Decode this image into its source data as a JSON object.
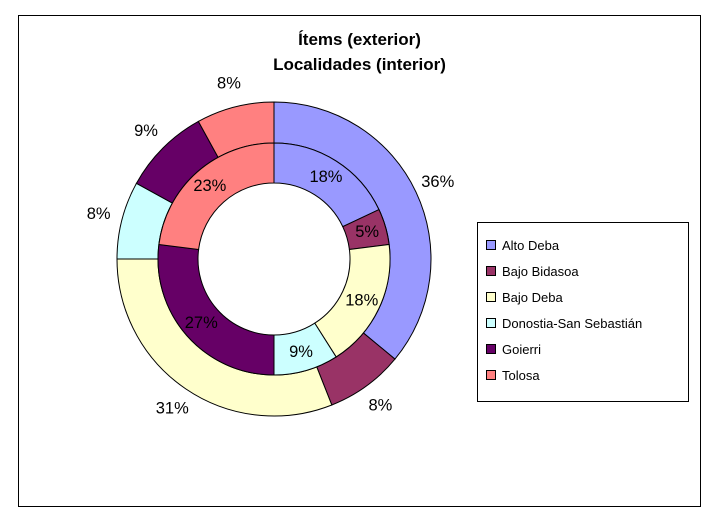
{
  "chart_data": {
    "type": "doughnut",
    "title": [
      "Ítems (exterior)",
      "Localidades (interior)"
    ],
    "legend": {
      "position": "right"
    },
    "categories": [
      "Alto Deba",
      "Bajo Bidasoa",
      "Bajo Deba",
      "Donostia-San Sebastián",
      "Goierri",
      "Tolosa"
    ],
    "colors": [
      "#9999FF",
      "#993366",
      "#FFFFCC",
      "#CCFFFF",
      "#660066",
      "#FF8080"
    ],
    "series": [
      {
        "values": [
          36,
          8,
          31,
          8,
          9,
          8
        ],
        "labels": [
          "36%",
          "8%",
          "31%",
          "8%",
          "9%",
          "8%"
        ]
      },
      {
        "values": [
          18,
          5,
          18,
          9,
          27,
          23
        ],
        "labels": [
          "18%",
          "5%",
          "18%",
          "9%",
          "27%",
          "23%"
        ]
      }
    ]
  }
}
